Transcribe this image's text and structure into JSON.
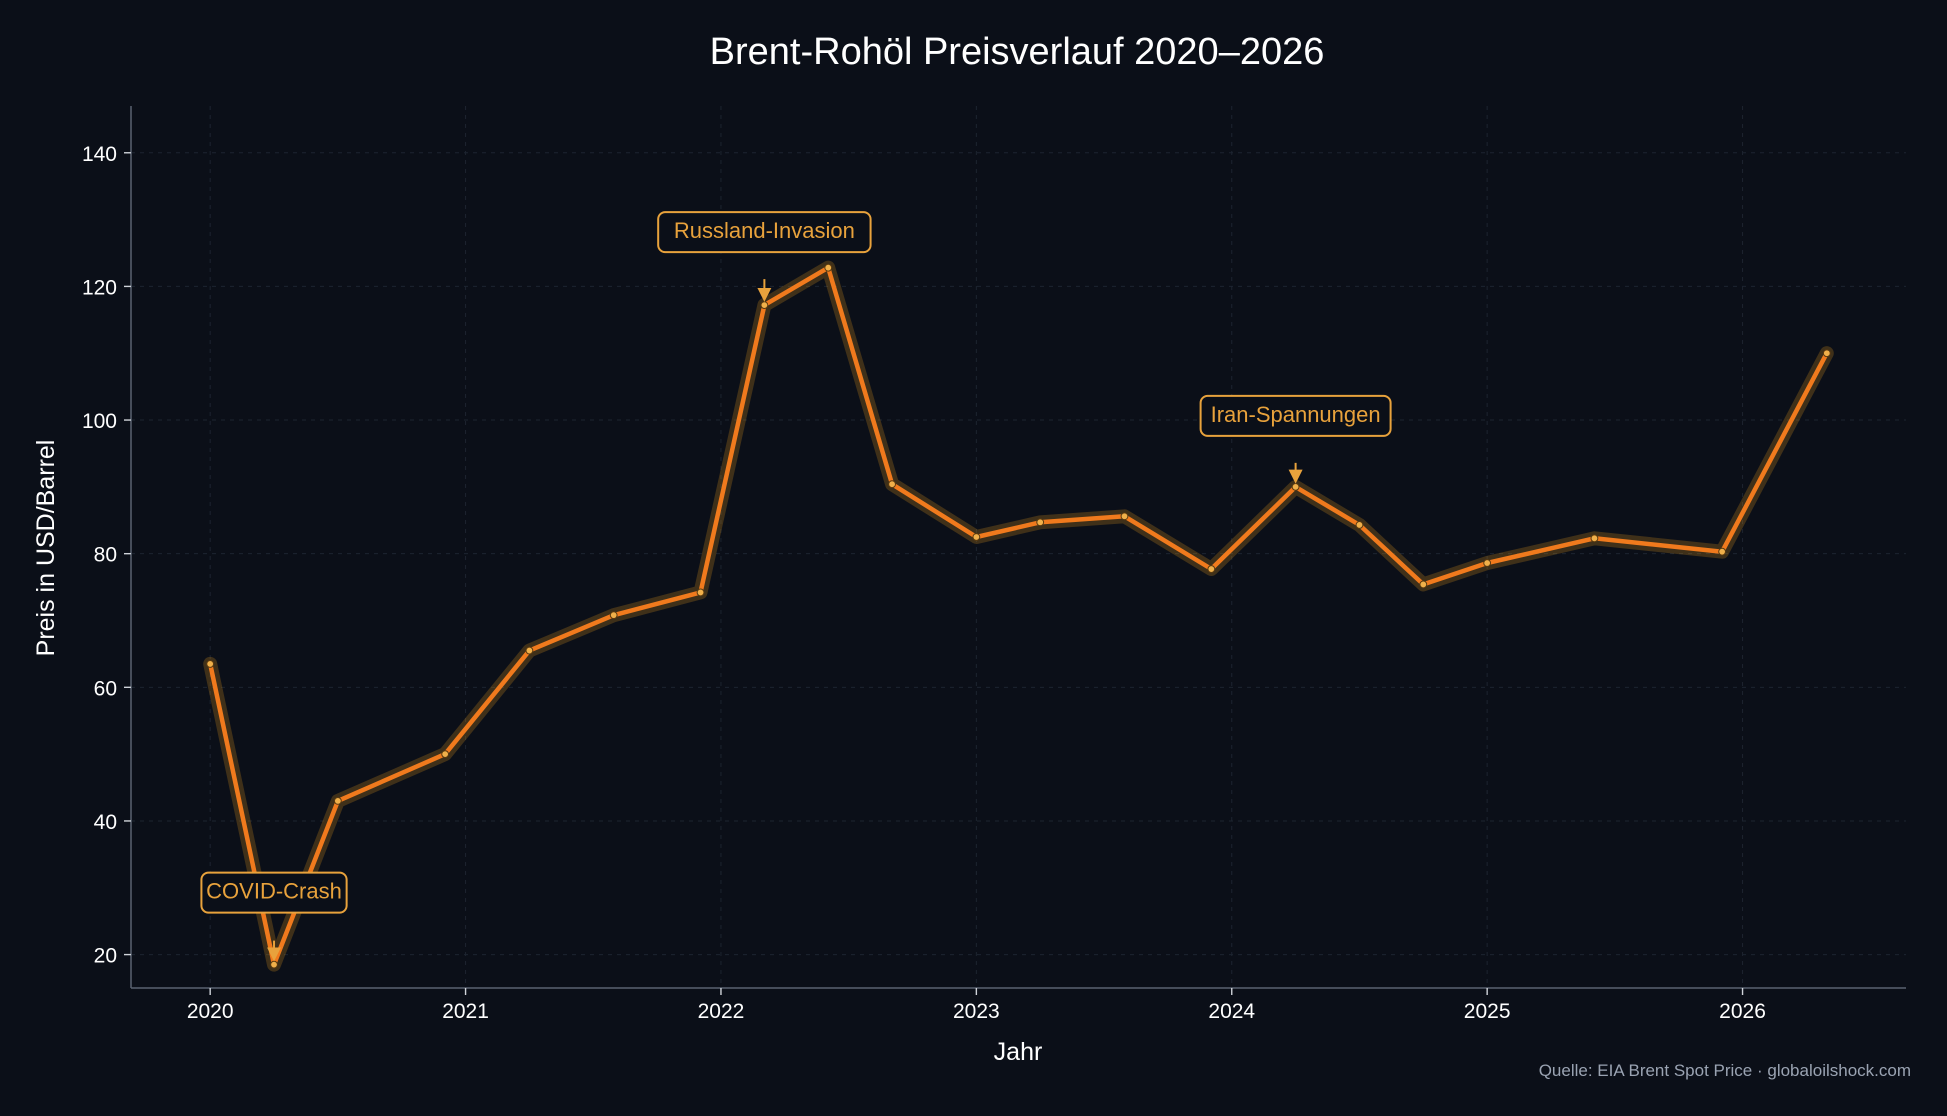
{
  "chart_data": {
    "type": "line",
    "title": "Brent-Rohöl Preisverlauf 2020–2026",
    "xlabel": "Jahr",
    "ylabel": "Preis in USD/Barrel",
    "source": "Quelle: EIA Brent Spot Price · globaloilshock.com",
    "xlim": [
      2019.69,
      2026.64
    ],
    "ylim": [
      15,
      147
    ],
    "x_ticks": [
      2020,
      2021,
      2022,
      2023,
      2024,
      2025,
      2026
    ],
    "y_ticks": [
      20,
      40,
      60,
      80,
      100,
      120,
      140
    ],
    "grid": true,
    "series": [
      {
        "x": [
          2020.0,
          2020.25,
          2020.5,
          2020.92,
          2021.25,
          2021.58,
          2021.92,
          2022.17,
          2022.42,
          2022.67,
          2023.0,
          2023.25,
          2023.58,
          2023.92,
          2024.25,
          2024.5,
          2024.75,
          2025.0,
          2025.42,
          2025.92,
          2026.33
        ],
        "values": [
          63.5,
          18.5,
          43.0,
          50.0,
          65.5,
          70.8,
          74.2,
          117.2,
          122.8,
          90.4,
          82.5,
          84.7,
          85.6,
          77.7,
          90.0,
          84.3,
          75.4,
          78.6,
          82.3,
          80.3,
          110.0
        ],
        "color": "#f07a1d"
      }
    ],
    "annotations": [
      {
        "text": "COVID-Crash",
        "x": 2020.25,
        "y": 18.5
      },
      {
        "text": "Russland-Invasion",
        "x": 2022.17,
        "y": 117.2
      },
      {
        "text": "Iran-Spannungen",
        "x": 2024.25,
        "y": 90.0
      }
    ],
    "colors": {
      "background": "#0b0f18",
      "line": "#f07a1d",
      "glow": "#c88a1e",
      "annotation": "#e8a23c",
      "text": "#ffffff",
      "source": "#9aa3b2",
      "grid": "#1d2430",
      "axis": "#5a6270"
    }
  }
}
